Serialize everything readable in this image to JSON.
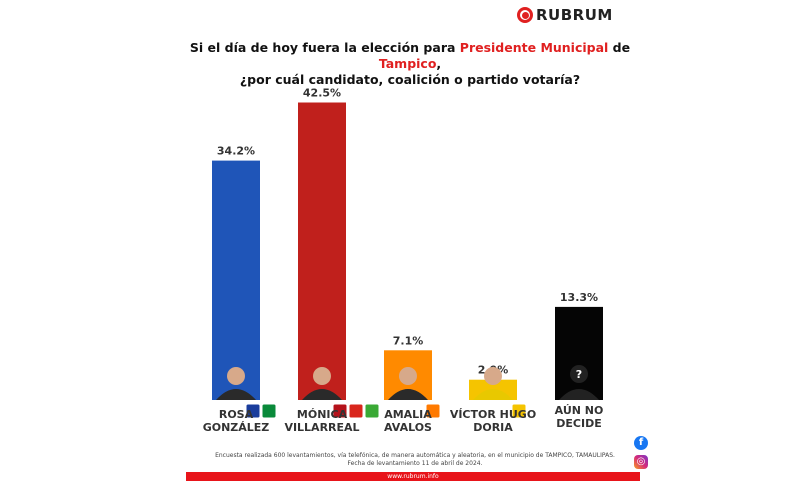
{
  "brand": {
    "name": "RUBRUM",
    "accent": "#e02020"
  },
  "title": {
    "part1": "Si el día de hoy fuera la elección para ",
    "highlight1": "Presidente Municipal",
    "part2": " de ",
    "highlight2": "Tampico",
    "part3": ",",
    "line2": "¿por cuál candidato, coalición o partido votaría?"
  },
  "chart_data": {
    "type": "bar",
    "categories": [
      "ROSA GONZÁLEZ",
      "MÓNICA VILLARREAL",
      "AMALIA AVALOS",
      "VÍCTOR HUGO DORIA",
      "AÚN NO DECIDE"
    ],
    "values": [
      34.2,
      42.5,
      7.1,
      2.9,
      13.3
    ],
    "labels": [
      "34.2%",
      "42.5%",
      "7.1%",
      "2.9%",
      "13.3%"
    ],
    "colors": [
      "#1f55b8",
      "#c0201c",
      "#ff8a00",
      "#f5c400",
      "#050505"
    ],
    "name_lines": [
      [
        "ROSA",
        "GONZÁLEZ"
      ],
      [
        "MÓNICA",
        "VILLARREAL"
      ],
      [
        "AMALIA",
        "AVALOS"
      ],
      [
        "VÍCTOR HUGO",
        "DORIA"
      ],
      [
        "AÚN NO",
        "DECIDE"
      ]
    ],
    "ylim": [
      0,
      45
    ],
    "grid": false,
    "xlabel": "",
    "ylabel": ""
  },
  "note": {
    "line1": "Encuesta realizada 600 levantamientos, vía telefónica, de manera automática y aleatoria, en el municipio de TAMPICO, TAMAULIPAS.",
    "line2": "Fecha de levantamiento 11 de abril de 2024."
  },
  "footer": {
    "url": "www.rubrum.info"
  },
  "social": {
    "facebook": "f",
    "instagram": "◎"
  }
}
